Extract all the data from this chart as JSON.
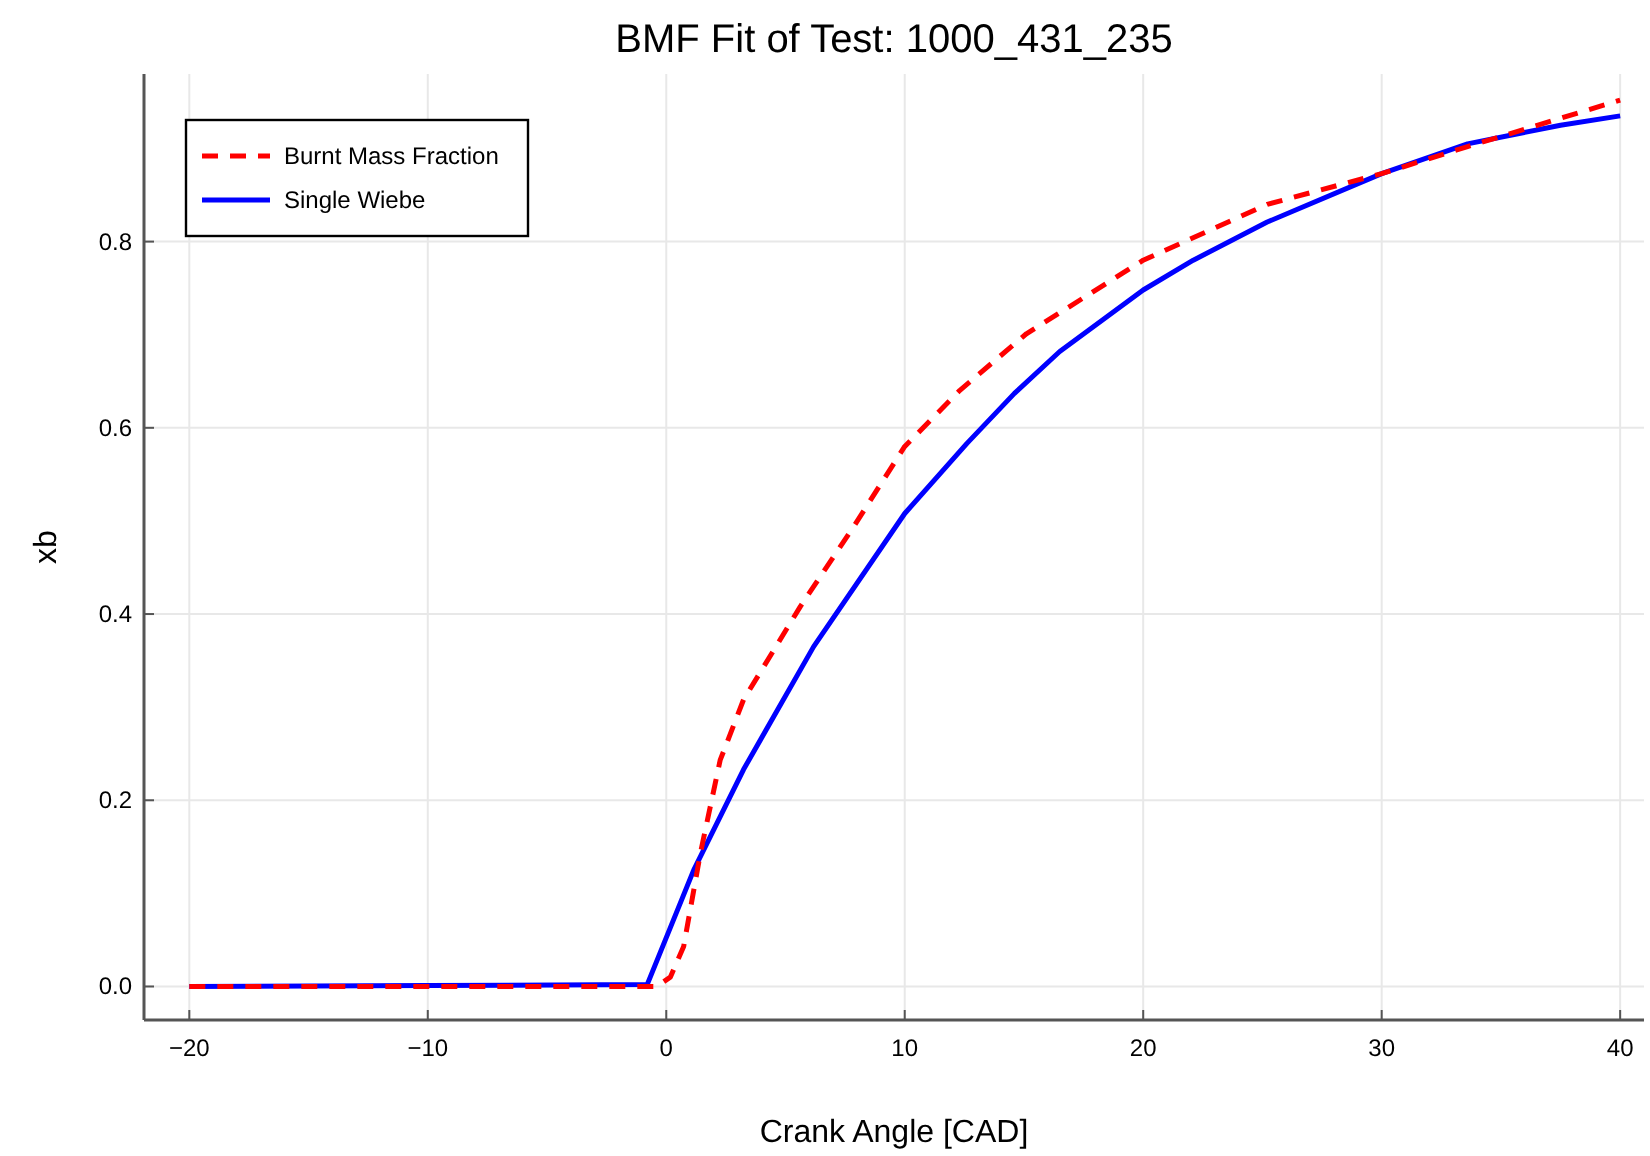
{
  "chart_data": {
    "type": "line",
    "title": "BMF Fit of Test: 1000_431_235",
    "xlabel": "Crank Angle [CAD]",
    "ylabel": "xb",
    "xlim": [
      -21.9,
      41
    ],
    "ylim": [
      -0.036,
      0.98
    ],
    "xticks": [
      -20,
      -10,
      0,
      10,
      20,
      30,
      40
    ],
    "yticks": [
      {
        "value": 0,
        "label": "0.0"
      },
      0.2,
      0.4,
      0.6,
      0.8
    ],
    "grid": true,
    "legend": "top left",
    "marker": "none",
    "series": [
      {
        "name": "Burnt Mass Fraction",
        "color": "#ff0000",
        "line_style": "dashed",
        "x": [
          -20,
          -10,
          -1,
          -0.4,
          0.17,
          0.73,
          1.43,
          2.26,
          3.24,
          5.62,
          7.86,
          10,
          12.3,
          15.1,
          20,
          25.2,
          30,
          33.6,
          40
        ],
        "values": [
          0,
          0,
          0,
          0,
          0.01,
          0.043,
          0.143,
          0.243,
          0.308,
          0.408,
          0.494,
          0.58,
          0.64,
          0.701,
          0.78,
          0.84,
          0.873,
          0.902,
          0.952
        ]
      },
      {
        "name": "Single Wiebe",
        "color": "#0000ff",
        "line_style": "solid",
        "x": [
          -20,
          -10,
          -0.8,
          1.15,
          3.24,
          6.18,
          10,
          12.6,
          14.6,
          16.5,
          20,
          22.1,
          25.2,
          30,
          33.6,
          37.5,
          40
        ],
        "values": [
          0,
          0.001,
          0.002,
          0.125,
          0.233,
          0.365,
          0.508,
          0.583,
          0.637,
          0.682,
          0.748,
          0.78,
          0.821,
          0.873,
          0.905,
          0.925,
          0.935
        ]
      }
    ]
  }
}
